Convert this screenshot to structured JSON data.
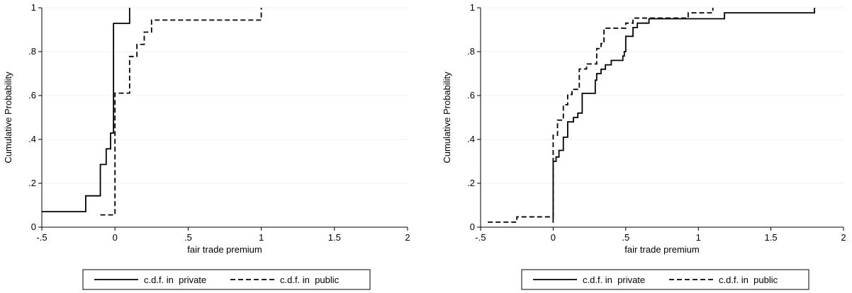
{
  "chart_data": [
    {
      "type": "line",
      "step": true,
      "xlabel": "fair trade premium",
      "ylabel": "Cumulative Probability",
      "xlim": [
        -0.5,
        2
      ],
      "ylim": [
        0,
        1
      ],
      "xticks": [
        -0.5,
        0,
        0.5,
        1,
        1.5,
        2
      ],
      "xtick_labels": [
        "-.5",
        "0",
        ".5",
        "1",
        "1.5",
        "2"
      ],
      "yticks": [
        0,
        0.2,
        0.4,
        0.6,
        0.8,
        1
      ],
      "ytick_labels": [
        "0",
        ".2",
        ".4",
        ".6",
        ".8",
        "1"
      ],
      "grid": "horizontal",
      "legend_position": "bottom",
      "series": [
        {
          "name": "c.d.f. in  private",
          "style": "solid",
          "points": [
            [
              -0.5,
              0.071
            ],
            [
              -0.2,
              0.071
            ],
            [
              -0.2,
              0.143
            ],
            [
              -0.1,
              0.143
            ],
            [
              -0.1,
              0.286
            ],
            [
              -0.06,
              0.286
            ],
            [
              -0.06,
              0.357
            ],
            [
              -0.03,
              0.357
            ],
            [
              -0.03,
              0.429
            ],
            [
              -0.01,
              0.429
            ],
            [
              -0.01,
              0.929
            ],
            [
              0.1,
              0.929
            ],
            [
              0.1,
              1.0
            ]
          ]
        },
        {
          "name": "c.d.f. in  public",
          "style": "dashed",
          "points": [
            [
              -0.1,
              0.056
            ],
            [
              0,
              0.056
            ],
            [
              0,
              0.611
            ],
            [
              0.1,
              0.611
            ],
            [
              0.1,
              0.778
            ],
            [
              0.15,
              0.778
            ],
            [
              0.15,
              0.833
            ],
            [
              0.2,
              0.833
            ],
            [
              0.2,
              0.889
            ],
            [
              0.25,
              0.889
            ],
            [
              0.25,
              0.944
            ],
            [
              1.0,
              0.944
            ],
            [
              1.0,
              1.0
            ]
          ]
        }
      ]
    },
    {
      "type": "line",
      "step": true,
      "xlabel": "fair trade premium",
      "ylabel": "Cumulative Probability",
      "xlim": [
        -0.5,
        2
      ],
      "ylim": [
        0,
        1
      ],
      "xticks": [
        -0.5,
        0,
        0.5,
        1,
        1.5,
        2
      ],
      "xtick_labels": [
        "-.5",
        "0",
        ".5",
        "1",
        "1.5",
        "2"
      ],
      "yticks": [
        0,
        0.2,
        0.4,
        0.6,
        0.8,
        1
      ],
      "ytick_labels": [
        "0",
        ".2",
        ".4",
        ".6",
        ".8",
        "1"
      ],
      "grid": "horizontal",
      "legend_position": "bottom",
      "series": [
        {
          "name": "c.d.f. in  private",
          "style": "solid",
          "points": [
            [
              0,
              0.02
            ],
            [
              0,
              0.3
            ],
            [
              0.02,
              0.3
            ],
            [
              0.02,
              0.32
            ],
            [
              0.04,
              0.32
            ],
            [
              0.04,
              0.35
            ],
            [
              0.07,
              0.35
            ],
            [
              0.07,
              0.41
            ],
            [
              0.1,
              0.41
            ],
            [
              0.1,
              0.48
            ],
            [
              0.14,
              0.48
            ],
            [
              0.14,
              0.5
            ],
            [
              0.17,
              0.5
            ],
            [
              0.17,
              0.52
            ],
            [
              0.2,
              0.52
            ],
            [
              0.2,
              0.61
            ],
            [
              0.29,
              0.61
            ],
            [
              0.29,
              0.67
            ],
            [
              0.3,
              0.67
            ],
            [
              0.3,
              0.7
            ],
            [
              0.33,
              0.7
            ],
            [
              0.33,
              0.72
            ],
            [
              0.36,
              0.72
            ],
            [
              0.36,
              0.74
            ],
            [
              0.4,
              0.74
            ],
            [
              0.4,
              0.76
            ],
            [
              0.48,
              0.76
            ],
            [
              0.48,
              0.78
            ],
            [
              0.49,
              0.78
            ],
            [
              0.49,
              0.8
            ],
            [
              0.5,
              0.8
            ],
            [
              0.5,
              0.87
            ],
            [
              0.55,
              0.87
            ],
            [
              0.55,
              0.91
            ],
            [
              0.58,
              0.91
            ],
            [
              0.58,
              0.93
            ],
            [
              0.66,
              0.93
            ],
            [
              0.66,
              0.95
            ],
            [
              1.18,
              0.95
            ],
            [
              1.18,
              0.977
            ],
            [
              1.8,
              0.977
            ],
            [
              1.8,
              1.0
            ]
          ]
        },
        {
          "name": "c.d.f. in  public",
          "style": "dashed",
          "points": [
            [
              -0.45,
              0.023
            ],
            [
              -0.25,
              0.023
            ],
            [
              -0.25,
              0.047
            ],
            [
              0,
              0.047
            ],
            [
              0,
              0.419
            ],
            [
              0.03,
              0.419
            ],
            [
              0.03,
              0.488
            ],
            [
              0.07,
              0.488
            ],
            [
              0.07,
              0.558
            ],
            [
              0.1,
              0.558
            ],
            [
              0.1,
              0.605
            ],
            [
              0.13,
              0.605
            ],
            [
              0.13,
              0.628
            ],
            [
              0.18,
              0.628
            ],
            [
              0.18,
              0.721
            ],
            [
              0.23,
              0.721
            ],
            [
              0.23,
              0.744
            ],
            [
              0.3,
              0.744
            ],
            [
              0.3,
              0.814
            ],
            [
              0.33,
              0.814
            ],
            [
              0.33,
              0.837
            ],
            [
              0.35,
              0.837
            ],
            [
              0.35,
              0.907
            ],
            [
              0.5,
              0.907
            ],
            [
              0.5,
              0.93
            ],
            [
              0.55,
              0.93
            ],
            [
              0.55,
              0.953
            ],
            [
              0.93,
              0.953
            ],
            [
              0.93,
              0.977
            ],
            [
              1.1,
              0.977
            ],
            [
              1.1,
              1.0
            ]
          ]
        }
      ]
    }
  ]
}
